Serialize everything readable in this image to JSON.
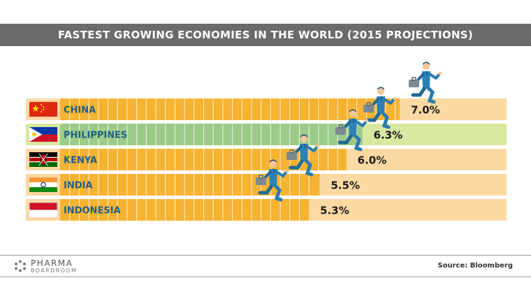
{
  "chart_data": {
    "type": "bar",
    "orientation": "horizontal",
    "title": "FASTEST GROWING ECONOMIES IN THE WORLD (2015 PROJECTIONS)",
    "categories": [
      "CHINA",
      "PHILIPPINES",
      "KENYA",
      "INDIA",
      "INDONESIA"
    ],
    "values": [
      7.0,
      6.3,
      6.0,
      5.5,
      5.3
    ],
    "value_labels": [
      "7.0%",
      "6.3%",
      "6.0%",
      "5.5%",
      "5.3%"
    ],
    "unit": "%",
    "xlim": [
      0,
      9.0
    ],
    "grid": false,
    "flags": [
      "china-flag-icon",
      "philippines-flag-icon",
      "kenya-flag-icon",
      "india-flag-icon",
      "indonesia-flag-icon"
    ],
    "colors": {
      "bar": "#f7b332",
      "bar_highlight": "#9ccc8a",
      "track": "#fcd9a3",
      "track_highlight": "#d8e8a0",
      "label": "#1f5f86",
      "highlight_index": 1
    }
  },
  "footer": {
    "logo_line1": "PHARMA",
    "logo_line2": "BOARDROOM",
    "source": "Source: Bloomberg"
  },
  "decoration": {
    "figures": "businessman-running-icon",
    "figure_count": 5
  }
}
